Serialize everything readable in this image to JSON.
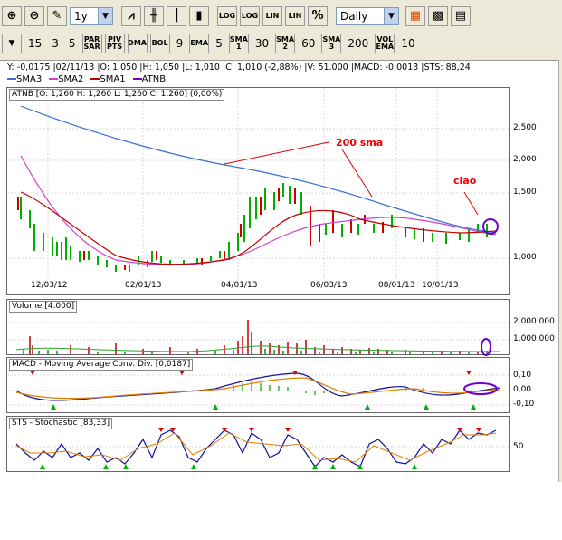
{
  "toolbar1": {
    "zoom_in": "⊕",
    "zoom_out": "⊖",
    "period": "1y",
    "chart_type": "Daily",
    "log1": "LOG",
    "log2": "LOG",
    "lin1": "LIN",
    "lin2": "LIN",
    "pct": "%"
  },
  "toolbar2": {
    "v1": "15",
    "v2": "3",
    "v3": "5",
    "par_sar": "PAR SAR",
    "piv_pts": "PIV PTS",
    "dma": "DMA",
    "bol": "BOL",
    "bol_v": "9",
    "ema": "EMA",
    "ema_v": "5",
    "sma1": "SMA 1",
    "sma1_v": "30",
    "sma2": "SMA 2",
    "sma2_v": "60",
    "sma3": "SMA 3",
    "sma3_v": "200",
    "vol_ema": "VOL EMA",
    "vol_ema_v": "10"
  },
  "info_line": "Y: -0,0175 |02/11/13 |O: 1,050 |H: 1,050 |L: 1,010 |C: 1,010 (-2,88%) |V: 51.000 |MACD: -0,0013 |STS: 88,24",
  "legend": [
    {
      "label": "SMA3",
      "color": "#3a6fd8"
    },
    {
      "label": "SMA2",
      "color": "#d040d0"
    },
    {
      "label": "SMA1",
      "color": "#c00000"
    },
    {
      "label": "ATNB",
      "color": "#8000c0"
    }
  ],
  "main_panel": {
    "title": "ATNB [O: 1,260  H: 1,260  L: 1,260  C: 1,260] (0,00%)",
    "y_ticks": [
      "2,500",
      "2,000",
      "1,500",
      "1,000"
    ],
    "x_ticks": [
      "12/03/12",
      "02/01/13",
      "04/01/13",
      "06/03/13",
      "08/01/13",
      "10/01/13"
    ],
    "annotation_200sma": "200 sma",
    "annotation_ciao": "ciao"
  },
  "volume_panel": {
    "title": "Volume [4.000]",
    "y_ticks": [
      "2.000.000",
      "1.000.000"
    ]
  },
  "macd_panel": {
    "title": "MACD - Moving Average Conv. Div. [0,0187]",
    "y_ticks": [
      "0,10",
      "0,00",
      "-0,10"
    ]
  },
  "sts_panel": {
    "title": "STS - Stochastic [83,33]",
    "y_ticks": [
      "50"
    ]
  },
  "colors": {
    "sma3": "#3a6fd8",
    "sma2": "#d040d0",
    "sma1": "#c00000",
    "up": "#00b000",
    "down": "#d00000",
    "annot": "#e00000"
  }
}
